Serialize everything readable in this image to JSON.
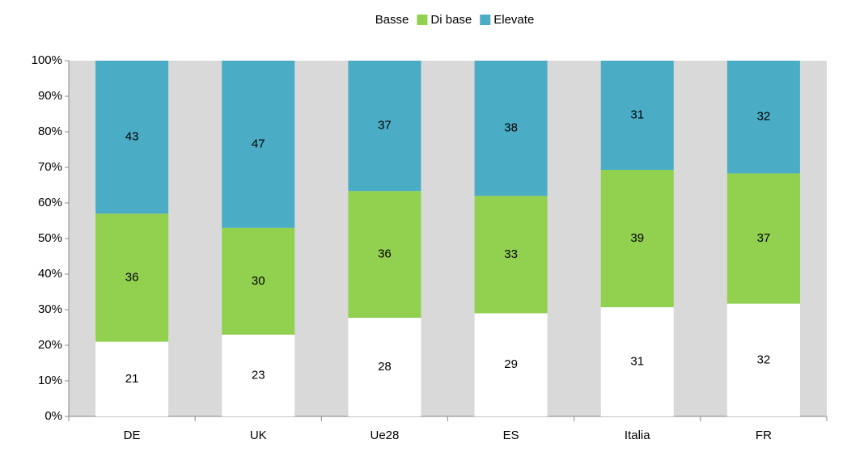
{
  "chart_data": {
    "type": "bar",
    "stacked": "percent",
    "categories": [
      "DE",
      "UK",
      "Ue28",
      "ES",
      "Italia",
      "FR"
    ],
    "series": [
      {
        "name": "Basse",
        "color": "#ffffff",
        "values": [
          21,
          23,
          28,
          29,
          31,
          32
        ]
      },
      {
        "name": "Di base",
        "color": "#92d050",
        "values": [
          36,
          30,
          36,
          33,
          39,
          37
        ]
      },
      {
        "name": "Elevate",
        "color": "#4bacc6",
        "values": [
          43,
          47,
          37,
          38,
          31,
          32
        ]
      }
    ],
    "ylim": [
      0,
      100
    ],
    "yticks": [
      {
        "value": 0,
        "label": "0%"
      },
      {
        "value": 10,
        "label": "10%"
      },
      {
        "value": 20,
        "label": "20%"
      },
      {
        "value": 30,
        "label": "30%"
      },
      {
        "value": 40,
        "label": "40%"
      },
      {
        "value": 50,
        "label": "50%"
      },
      {
        "value": 60,
        "label": "60%"
      },
      {
        "value": 70,
        "label": "70%"
      },
      {
        "value": 80,
        "label": "80%"
      },
      {
        "value": 90,
        "label": "90%"
      },
      {
        "value": 100,
        "label": "100%"
      }
    ],
    "background": "#d9d9d9",
    "legend": "top"
  }
}
